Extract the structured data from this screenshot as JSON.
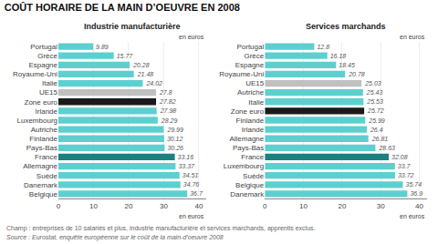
{
  "title": "COÛT HORAIRE DE LA MAIN D’OEUVRE EN 2008",
  "footnotes": [
    "Champ : entreprises de 10 salariés et plus, industrie manufacturière et services marchands, apprentis exclus.",
    "Source : Eurostat, enquête européenne sur le coût de la main-d’oeuvre 2008"
  ],
  "chart_data": [
    {
      "type": "bar",
      "orientation": "horizontal",
      "title": "Industrie manufacturière",
      "categories": [
        "Portugal",
        "Grèce",
        "Espagne",
        "Royaume-Uni",
        "Italie",
        "UE15",
        "Zone euro",
        "Irlande",
        "Luxembourg",
        "Autriche",
        "Finlande",
        "Pays-Bas",
        "France",
        "Allemagne",
        "Suède",
        "Danemark",
        "Belgique"
      ],
      "values": [
        9.89,
        15.77,
        20.28,
        21.48,
        24.02,
        27.8,
        27.82,
        27.98,
        28.29,
        29.99,
        30.12,
        30.26,
        33.16,
        33.37,
        34.51,
        34.76,
        36.7
      ],
      "colors": [
        "#5ecfcf",
        "#5ecfcf",
        "#5ecfcf",
        "#5ecfcf",
        "#5ecfcf",
        "#c0c0c0",
        "#1a1a1a",
        "#5ecfcf",
        "#5ecfcf",
        "#5ecfcf",
        "#5ecfcf",
        "#5ecfcf",
        "#1a8080",
        "#5ecfcf",
        "#5ecfcf",
        "#5ecfcf",
        "#5ecfcf"
      ],
      "xlim": [
        0,
        42
      ],
      "xticks": [
        0,
        10,
        20,
        30,
        40
      ],
      "grid": true,
      "data_labels": true,
      "annotations": [
        "en euros",
        "en euros"
      ]
    },
    {
      "type": "bar",
      "orientation": "horizontal",
      "title": "Services marchands",
      "categories": [
        "Portugal",
        "Grèce",
        "Espagne",
        "Royaume-Uni",
        "UE15",
        "Autriche",
        "Italie",
        "Zone euro",
        "Finlande",
        "Irlande",
        "Allemagne",
        "Pays-Bas",
        "France",
        "Luxembourg",
        "Suède",
        "Belgique",
        "Danemark"
      ],
      "values": [
        12.8,
        16.18,
        18.45,
        20.78,
        25.03,
        25.43,
        25.53,
        25.72,
        25.99,
        26.4,
        26.81,
        28.63,
        32.08,
        33.7,
        33.72,
        35.74,
        36.9
      ],
      "colors": [
        "#5ecfcf",
        "#5ecfcf",
        "#5ecfcf",
        "#5ecfcf",
        "#c0c0c0",
        "#5ecfcf",
        "#5ecfcf",
        "#1a1a1a",
        "#5ecfcf",
        "#5ecfcf",
        "#5ecfcf",
        "#5ecfcf",
        "#1a8080",
        "#5ecfcf",
        "#5ecfcf",
        "#5ecfcf",
        "#5ecfcf"
      ],
      "xlim": [
        0,
        42
      ],
      "xticks": [
        0,
        10,
        20,
        30,
        40
      ],
      "grid": true,
      "data_labels": true,
      "annotations": [
        "en euros",
        "en euros"
      ]
    }
  ]
}
